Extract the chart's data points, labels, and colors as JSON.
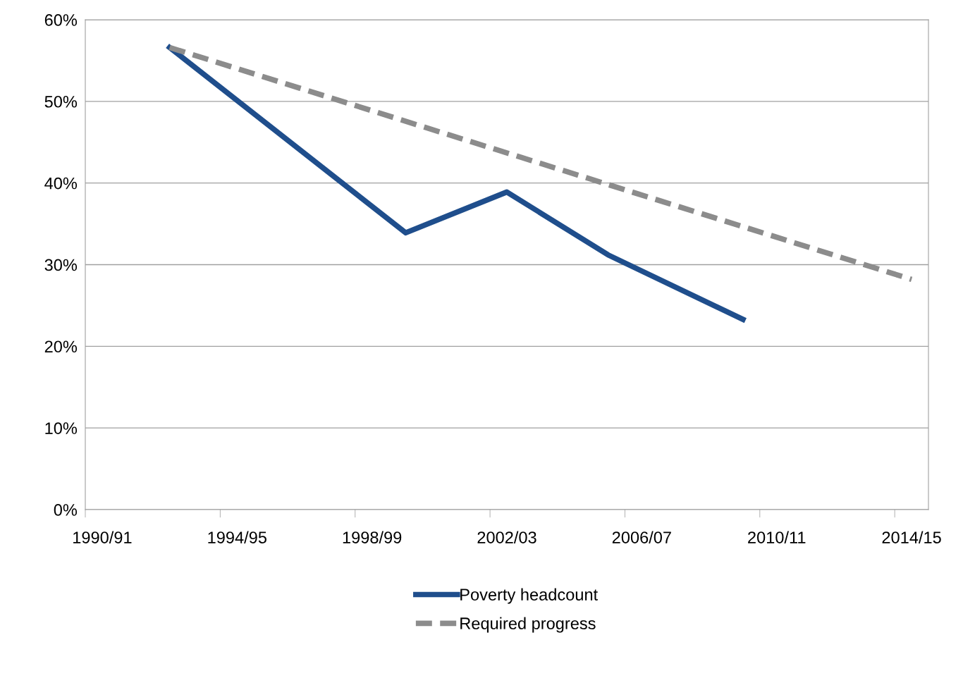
{
  "chart_data": {
    "type": "line",
    "categories": [
      "1990/91",
      null,
      null,
      null,
      "1994/95",
      null,
      null,
      null,
      "1998/99",
      null,
      null,
      null,
      "2002/03",
      null,
      null,
      null,
      "2006/07",
      null,
      null,
      null,
      "2010/11",
      null,
      null,
      null,
      "2014/15"
    ],
    "series": [
      {
        "name": "Poverty headcount",
        "color": "#1f4e8c",
        "values": [
          null,
          null,
          56.6,
          null,
          null,
          null,
          null,
          null,
          null,
          33.9,
          null,
          null,
          38.9,
          null,
          null,
          31.2,
          null,
          null,
          null,
          23.3,
          null,
          null,
          null,
          null,
          null
        ],
        "line_style": "solid"
      },
      {
        "name": "Required progress",
        "color": "#8c8c8c",
        "values": [
          null,
          null,
          56.6,
          null,
          null,
          null,
          null,
          null,
          null,
          null,
          null,
          null,
          null,
          null,
          null,
          null,
          null,
          null,
          null,
          null,
          null,
          null,
          null,
          null,
          28.2
        ],
        "line_style": "dashed"
      }
    ],
    "ylim": [
      0,
      60
    ],
    "yticks": [
      {
        "value": 0,
        "label": "0%"
      },
      {
        "value": 10,
        "label": "10%"
      },
      {
        "value": 20,
        "label": "20%"
      },
      {
        "value": 30,
        "label": "30%"
      },
      {
        "value": 40,
        "label": "40%"
      },
      {
        "value": 50,
        "label": "50%"
      },
      {
        "value": 60,
        "label": "60%"
      }
    ],
    "grid": "y",
    "legend": "bottom",
    "marker": "none"
  }
}
